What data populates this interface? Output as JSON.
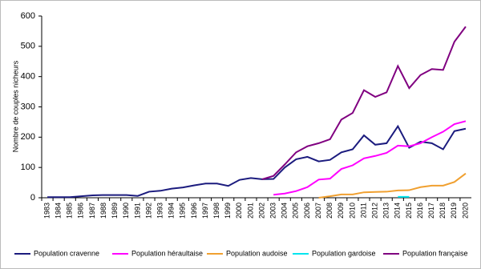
{
  "chart_data": {
    "type": "line",
    "y_label": "Nombre de couples nicheurs",
    "categories": [
      "1983",
      "1984",
      "1985",
      "1986",
      "1987",
      "1988",
      "1989",
      "1990",
      "1991",
      "1992",
      "1993",
      "1994",
      "1995",
      "1996",
      "1997",
      "1998",
      "1999",
      "2000",
      "2001",
      "2002",
      "2003",
      "2004",
      "2005",
      "2006",
      "2007",
      "2008",
      "2009",
      "2010",
      "2011",
      "2012",
      "2013",
      "2014",
      "2015",
      "2016",
      "2017",
      "2018",
      "2019",
      "2020"
    ],
    "ylim": [
      0,
      600
    ],
    "yticks": [
      0,
      100,
      200,
      300,
      400,
      500,
      600
    ],
    "legend": "bottom",
    "series": [
      {
        "name": "Population cravenne",
        "color": "#1b1b7e",
        "values": [
          2,
          2,
          2,
          5,
          8,
          9,
          9,
          9,
          6,
          20,
          23,
          30,
          34,
          41,
          47,
          47,
          39,
          59,
          65,
          61,
          62,
          100,
          127,
          135,
          120,
          125,
          150,
          160,
          206,
          175,
          180,
          236,
          165,
          185,
          180,
          160,
          220,
          228
        ]
      },
      {
        "name": "Population héraultaise",
        "color": "#ff00ff",
        "values": [
          null,
          null,
          null,
          null,
          null,
          null,
          null,
          null,
          null,
          null,
          null,
          null,
          null,
          null,
          null,
          null,
          null,
          null,
          null,
          null,
          10,
          14,
          22,
          35,
          60,
          63,
          95,
          107,
          130,
          138,
          148,
          172,
          170,
          180,
          200,
          218,
          243,
          253
        ]
      },
      {
        "name": "Population audoise",
        "color": "#f0a030",
        "values": [
          null,
          null,
          null,
          null,
          null,
          null,
          null,
          null,
          null,
          null,
          null,
          null,
          null,
          null,
          null,
          null,
          null,
          null,
          null,
          null,
          null,
          null,
          null,
          null,
          0,
          5,
          11,
          11,
          18,
          19,
          20,
          24,
          25,
          35,
          40,
          40,
          52,
          80
        ]
      },
      {
        "name": "Population gardoise",
        "color": "#00e5ee",
        "values": [
          null,
          null,
          null,
          null,
          null,
          null,
          null,
          null,
          null,
          null,
          null,
          null,
          null,
          null,
          null,
          null,
          null,
          null,
          null,
          null,
          null,
          null,
          null,
          null,
          null,
          null,
          null,
          null,
          null,
          null,
          null,
          3,
          3,
          null,
          null,
          null,
          null,
          null
        ]
      },
      {
        "name": "Population française",
        "color": "#800080",
        "values": [
          null,
          null,
          null,
          null,
          null,
          null,
          null,
          null,
          null,
          null,
          null,
          null,
          null,
          null,
          null,
          null,
          null,
          null,
          null,
          61,
          72,
          110,
          150,
          170,
          180,
          193,
          258,
          280,
          355,
          333,
          348,
          435,
          362,
          405,
          425,
          422,
          515,
          565
        ]
      }
    ]
  }
}
